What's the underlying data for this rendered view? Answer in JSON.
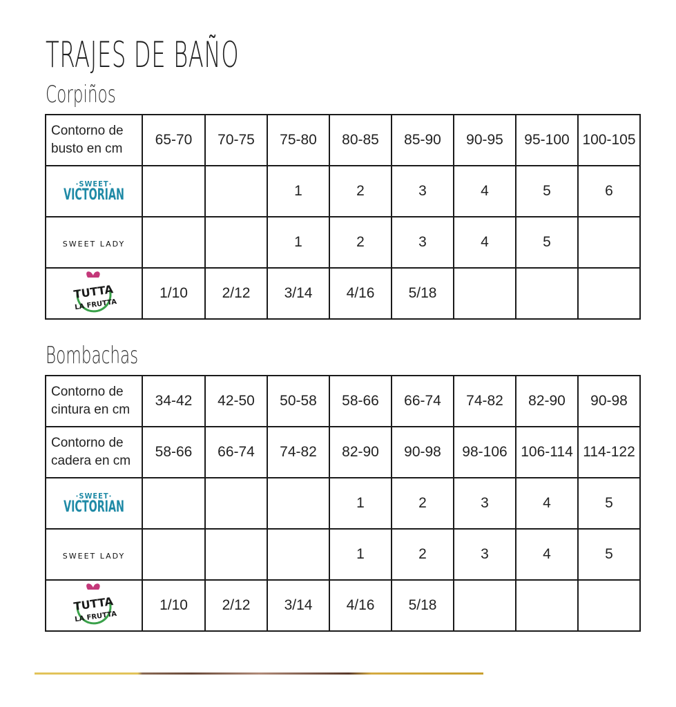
{
  "title": "TRAJES DE BAÑO",
  "brands": {
    "sweet_victorian": {
      "top": "·SWEET·",
      "bottom": "VICTORIAN",
      "color": "#1f8aa6"
    },
    "sweet_lady": "SWEET LADY",
    "tutta_frutta": {
      "top": "TUTTA",
      "bottom": "LA FRUTTA"
    }
  },
  "corpinos": {
    "heading": "Corpiños",
    "header_label": [
      "Contorno de",
      "busto en cm"
    ],
    "sizes": [
      "65-70",
      "70-75",
      "75-80",
      "80-85",
      "85-90",
      "90-95",
      "95-100",
      "100-105"
    ],
    "rows": [
      {
        "brand": "sweet_victorian",
        "values": [
          "",
          "",
          "1",
          "2",
          "3",
          "4",
          "5",
          "6"
        ]
      },
      {
        "brand": "sweet_lady",
        "values": [
          "",
          "",
          "1",
          "2",
          "3",
          "4",
          "5",
          ""
        ]
      },
      {
        "brand": "tutta_frutta",
        "values": [
          "1/10",
          "2/12",
          "3/14",
          "4/16",
          "5/18",
          "",
          "",
          ""
        ]
      }
    ]
  },
  "bombachas": {
    "heading": "Bombachas",
    "waist_label": [
      "Contorno de",
      "cintura en cm"
    ],
    "waist": [
      "34-42",
      "42-50",
      "50-58",
      "58-66",
      "66-74",
      "74-82",
      "82-90",
      "90-98"
    ],
    "hip_label": [
      "Contorno de",
      "cadera en cm"
    ],
    "hip": [
      "58-66",
      "66-74",
      "74-82",
      "82-90",
      "90-98",
      "98-106",
      "106-114",
      "114-122"
    ],
    "rows": [
      {
        "brand": "sweet_victorian",
        "values": [
          "",
          "",
          "",
          "1",
          "2",
          "3",
          "4",
          "5"
        ]
      },
      {
        "brand": "sweet_lady",
        "values": [
          "",
          "",
          "",
          "1",
          "2",
          "3",
          "4",
          "5"
        ]
      },
      {
        "brand": "tutta_frutta",
        "values": [
          "1/10",
          "2/12",
          "3/14",
          "4/16",
          "5/18",
          "",
          "",
          ""
        ]
      }
    ]
  }
}
